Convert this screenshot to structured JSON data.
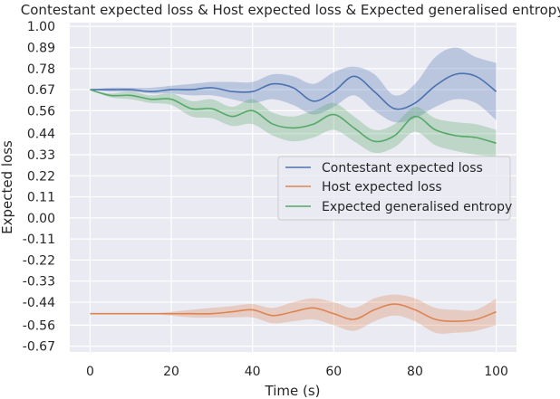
{
  "chart_data": {
    "type": "line",
    "title": "Contestant expected loss & Host expected loss & Expected generalised entropy",
    "xlabel": "Time (s)",
    "ylabel": "Expected loss",
    "xlim": [
      -5,
      105
    ],
    "ylim": [
      -0.7,
      1.02
    ],
    "xticks": [
      0,
      20,
      40,
      60,
      80,
      100
    ],
    "yticks": [
      1.0,
      0.89,
      0.78,
      0.67,
      0.56,
      0.44,
      0.33,
      0.22,
      0.11,
      0.0,
      -0.11,
      -0.22,
      -0.33,
      -0.44,
      -0.56,
      -0.67
    ],
    "ytick_labels": [
      "1.00",
      "0.89",
      "0.78",
      "0.67",
      "0.56",
      "0.44",
      "0.33",
      "0.22",
      "0.11",
      "0.00",
      "-0.11",
      "-0.22",
      "-0.33",
      "-0.44",
      "-0.56",
      "-0.67"
    ],
    "grid": true,
    "legend_position": "center-right",
    "x": [
      0,
      5,
      10,
      15,
      20,
      25,
      30,
      35,
      40,
      45,
      50,
      55,
      60,
      65,
      70,
      75,
      80,
      85,
      90,
      95,
      100
    ],
    "series": [
      {
        "name": "Contestant expected loss",
        "color": "#4c72b0",
        "values": [
          0.67,
          0.67,
          0.67,
          0.66,
          0.67,
          0.67,
          0.68,
          0.66,
          0.66,
          0.7,
          0.68,
          0.61,
          0.66,
          0.74,
          0.66,
          0.57,
          0.6,
          0.69,
          0.75,
          0.74,
          0.66
        ],
        "lower": [
          0.67,
          0.66,
          0.66,
          0.65,
          0.65,
          0.64,
          0.64,
          0.62,
          0.6,
          0.62,
          0.59,
          0.54,
          0.58,
          0.64,
          0.56,
          0.5,
          0.52,
          0.58,
          0.62,
          0.6,
          0.51
        ],
        "upper": [
          0.67,
          0.68,
          0.68,
          0.68,
          0.69,
          0.7,
          0.71,
          0.71,
          0.71,
          0.75,
          0.74,
          0.7,
          0.76,
          0.79,
          0.75,
          0.64,
          0.7,
          0.84,
          0.89,
          0.84,
          0.81
        ]
      },
      {
        "name": "Host expected loss",
        "color": "#dd8452",
        "values": [
          -0.5,
          -0.5,
          -0.5,
          -0.5,
          -0.5,
          -0.5,
          -0.5,
          -0.49,
          -0.48,
          -0.51,
          -0.49,
          -0.47,
          -0.5,
          -0.53,
          -0.48,
          -0.45,
          -0.48,
          -0.53,
          -0.54,
          -0.53,
          -0.49
        ],
        "lower": [
          -0.5,
          -0.5,
          -0.5,
          -0.5,
          -0.51,
          -0.52,
          -0.52,
          -0.52,
          -0.52,
          -0.55,
          -0.54,
          -0.53,
          -0.56,
          -0.59,
          -0.54,
          -0.51,
          -0.54,
          -0.6,
          -0.6,
          -0.59,
          -0.56
        ],
        "upper": [
          -0.5,
          -0.5,
          -0.5,
          -0.5,
          -0.49,
          -0.48,
          -0.47,
          -0.46,
          -0.45,
          -0.47,
          -0.44,
          -0.42,
          -0.44,
          -0.47,
          -0.42,
          -0.4,
          -0.42,
          -0.47,
          -0.48,
          -0.48,
          -0.42
        ]
      },
      {
        "name": "Expected generalised entropy",
        "color": "#55a868",
        "values": [
          0.67,
          0.64,
          0.64,
          0.62,
          0.62,
          0.57,
          0.57,
          0.53,
          0.56,
          0.49,
          0.47,
          0.49,
          0.54,
          0.47,
          0.4,
          0.43,
          0.53,
          0.46,
          0.43,
          0.42,
          0.39
        ],
        "lower": [
          0.67,
          0.63,
          0.62,
          0.6,
          0.59,
          0.53,
          0.52,
          0.48,
          0.49,
          0.43,
          0.4,
          0.42,
          0.46,
          0.4,
          0.34,
          0.37,
          0.45,
          0.38,
          0.35,
          0.33,
          0.32
        ],
        "upper": [
          0.67,
          0.65,
          0.66,
          0.64,
          0.65,
          0.61,
          0.62,
          0.58,
          0.62,
          0.55,
          0.53,
          0.56,
          0.6,
          0.53,
          0.46,
          0.49,
          0.58,
          0.52,
          0.5,
          0.49,
          0.46
        ]
      }
    ]
  }
}
